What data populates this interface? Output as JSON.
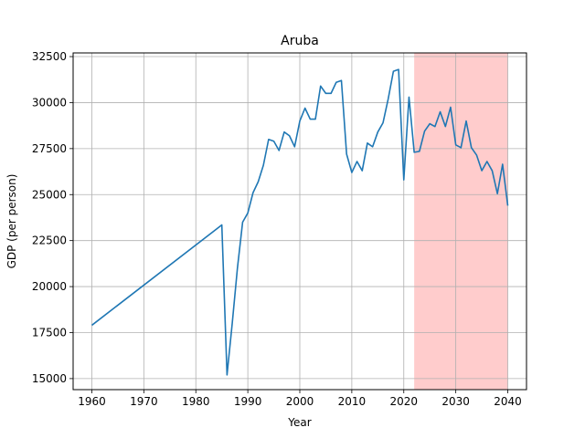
{
  "chart_data": {
    "type": "line",
    "title": "Aruba",
    "xlabel": "Year",
    "ylabel": "GDP (per person)",
    "xlim": [
      1956.4,
      2043.6
    ],
    "ylim": [
      14400,
      32700
    ],
    "xticks": [
      1960,
      1970,
      1980,
      1990,
      2000,
      2010,
      2020,
      2030,
      2040
    ],
    "yticks": [
      15000,
      17500,
      20000,
      22500,
      25000,
      27500,
      30000,
      32500
    ],
    "grid": true,
    "shaded_region": {
      "x_start": 2022,
      "x_end": 2040,
      "color": "#ffcccc"
    },
    "series": [
      {
        "color": "#1f77b4",
        "x": [
          1960,
          1985,
          1986,
          1987,
          1988,
          1989,
          1990,
          1991,
          1992,
          1993,
          1994,
          1995,
          1996,
          1997,
          1998,
          1999,
          2000,
          2001,
          2002,
          2003,
          2004,
          2005,
          2006,
          2007,
          2008,
          2009,
          2010,
          2011,
          2012,
          2013,
          2014,
          2015,
          2016,
          2017,
          2018,
          2019,
          2020,
          2021,
          2022,
          2023,
          2024,
          2025,
          2026,
          2027,
          2028,
          2029,
          2030,
          2031,
          2032,
          2033,
          2034,
          2035,
          2036,
          2037,
          2038,
          2039,
          2040
        ],
        "y": [
          17900,
          23350,
          15200,
          18000,
          21000,
          23500,
          24000,
          25100,
          25700,
          26600,
          28000,
          27900,
          27400,
          28400,
          28200,
          27600,
          29000,
          29700,
          29100,
          29100,
          30900,
          30500,
          30500,
          31100,
          31200,
          27200,
          26200,
          26800,
          26300,
          27800,
          27600,
          28400,
          28900,
          30200,
          31700,
          31800,
          25800,
          30300,
          27300,
          27350,
          28450,
          28850,
          28700,
          29500,
          28700,
          29750,
          27700,
          27550,
          29000,
          27550,
          27150,
          26300,
          26800,
          26300,
          25050,
          26650,
          24400
        ]
      }
    ]
  }
}
